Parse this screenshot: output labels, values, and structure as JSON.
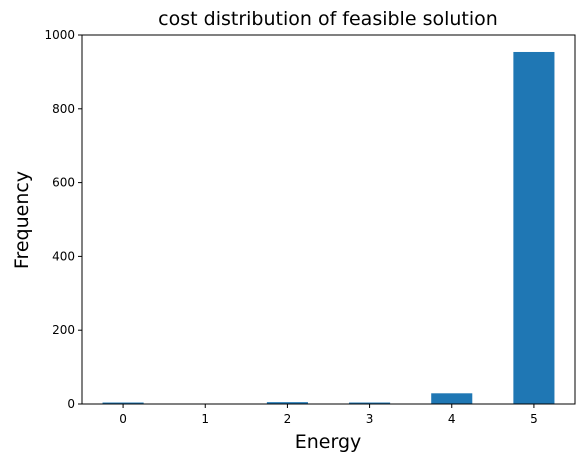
{
  "chart_data": {
    "type": "bar",
    "title": "cost distribution of feasible solution",
    "x_label": "Energy",
    "y_label": "Frequency",
    "categories": [
      "0",
      "1",
      "2",
      "3",
      "4",
      "5"
    ],
    "values": [
      4,
      1,
      5,
      4,
      29,
      954
    ],
    "color": "#1f77b4",
    "ylim": [
      0,
      1000
    ],
    "yticks": [
      0,
      200,
      400,
      600,
      800,
      1000
    ],
    "grid": false
  }
}
